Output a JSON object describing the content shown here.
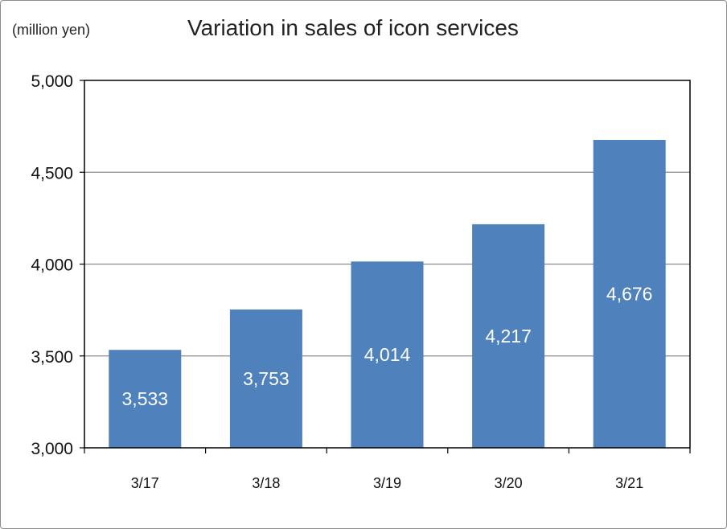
{
  "chart_data": {
    "type": "bar",
    "title": "Variation in sales of icon services",
    "unit_label": "(million yen)",
    "categories": [
      "3/17",
      "3/18",
      "3/19",
      "3/20",
      "3/21"
    ],
    "values": [
      3533,
      3753,
      4014,
      4217,
      4676
    ],
    "data_labels": [
      "3,533",
      "3,753",
      "4,014",
      "4,217",
      "4,676"
    ],
    "ylim": [
      3000,
      5000
    ],
    "yticks": [
      3000,
      3500,
      4000,
      4500,
      5000
    ],
    "ytick_labels": [
      "3,000",
      "3,500",
      "4,000",
      "4,500",
      "5,000"
    ],
    "bar_color": "#4f81bd",
    "grid": true,
    "legend": "none"
  }
}
